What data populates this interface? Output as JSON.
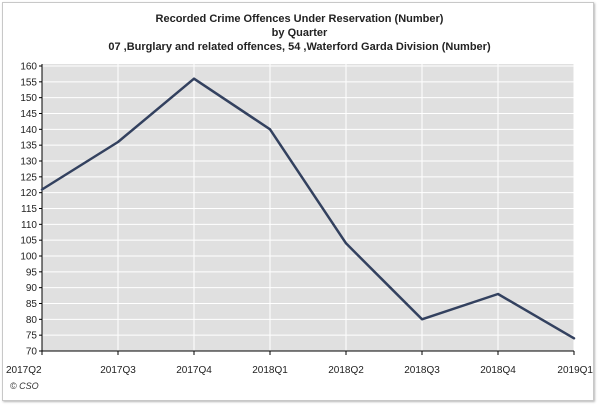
{
  "chart_data": {
    "type": "line",
    "title": "Recorded Crime Offences Under Reservation (Number)",
    "subtitle_1": "by Quarter",
    "subtitle_2": "07 ,Burglary and related offences, 54 ,Waterford  Garda Division (Number)",
    "categories": [
      "2017Q2",
      "2017Q3",
      "2017Q4",
      "2018Q1",
      "2018Q2",
      "2018Q3",
      "2018Q4",
      "2019Q1"
    ],
    "series": [
      {
        "values": [
          121,
          136,
          156,
          140,
          104,
          80,
          88,
          74
        ]
      }
    ],
    "ylim": [
      70,
      160
    ],
    "yticks": [
      70,
      75,
      80,
      85,
      90,
      95,
      100,
      105,
      110,
      115,
      120,
      125,
      130,
      135,
      140,
      145,
      150,
      155,
      160
    ],
    "grid": true,
    "line_color": "#33415f",
    "plot_background": "#e0e0e0",
    "grid_color": "#ffffff"
  },
  "footer": {
    "credit": "© CSO"
  }
}
